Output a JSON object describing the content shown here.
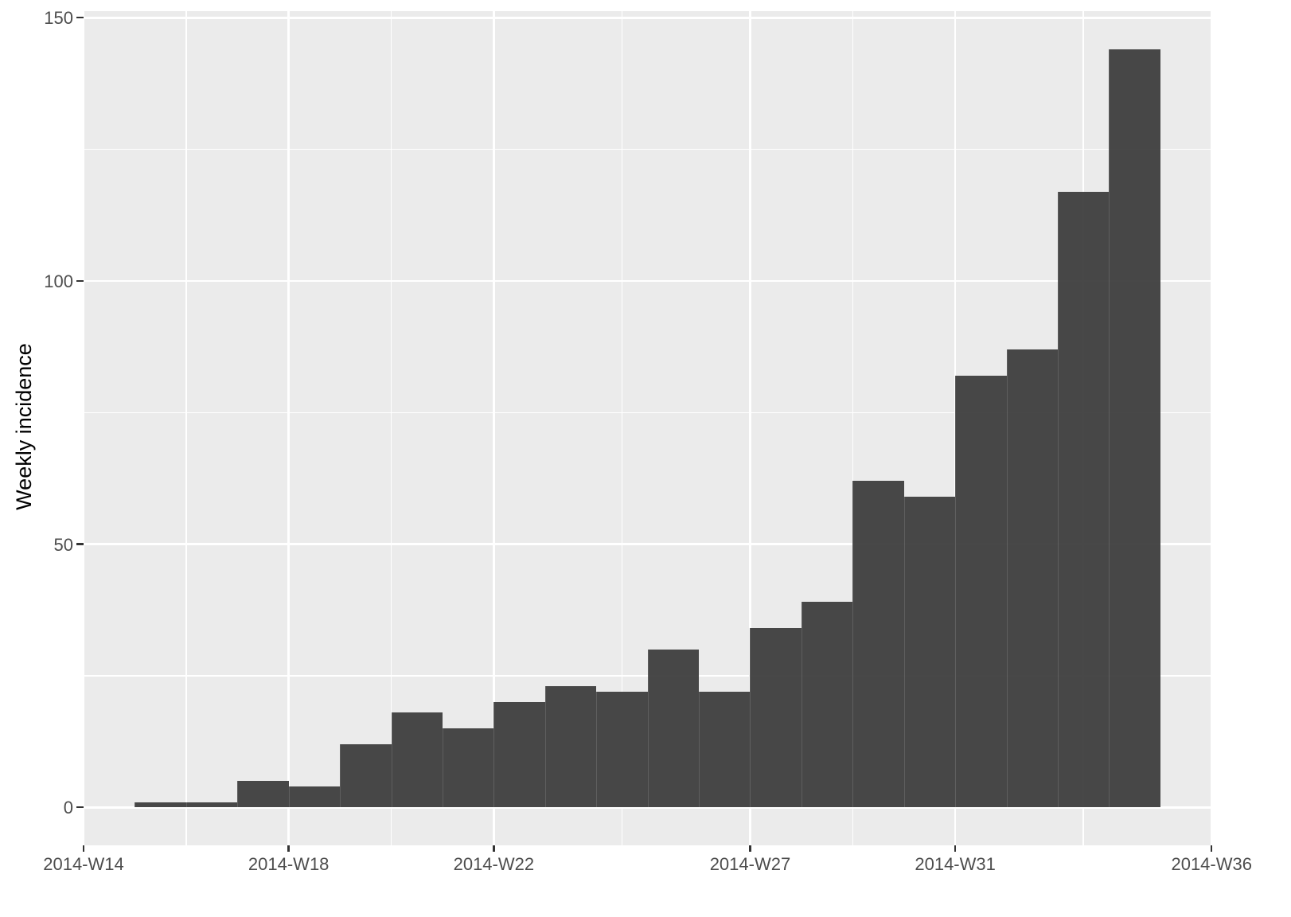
{
  "chart_data": {
    "type": "bar",
    "subtype": "histogram-epicurve",
    "title": "",
    "xlabel": "",
    "ylabel": "Weekly incidence",
    "categories": [
      "2014-W15",
      "2014-W16",
      "2014-W17",
      "2014-W18",
      "2014-W19",
      "2014-W20",
      "2014-W21",
      "2014-W22",
      "2014-W23",
      "2014-W24",
      "2014-W25",
      "2014-W26",
      "2014-W27",
      "2014-W28",
      "2014-W29",
      "2014-W30",
      "2014-W31",
      "2014-W32",
      "2014-W33",
      "2014-W34"
    ],
    "values": [
      1,
      1,
      5,
      4,
      12,
      18,
      15,
      20,
      23,
      22,
      30,
      22,
      34,
      39,
      62,
      59,
      82,
      87,
      117,
      144
    ],
    "ylim": [
      0,
      150
    ],
    "y_major_ticks": [
      0,
      50,
      100,
      150
    ],
    "y_minor_ticks": [
      25,
      75,
      125
    ],
    "x_tick_labels": [
      "2014-W14",
      "2014-W18",
      "2014-W22",
      "2014-W27",
      "2014-W31",
      "2014-W36"
    ],
    "x_tick_week_offsets": [
      0,
      4,
      8,
      13,
      17,
      22
    ],
    "x_minor_week_offsets": [
      2,
      6,
      10.5,
      15,
      19.5
    ],
    "bar_start_week_offset": 1,
    "bar_width_weeks": 1,
    "grid": true,
    "legend_position": "none",
    "colors": {
      "bar_fill": "#464646",
      "panel_background": "#ebebeb",
      "gridline": "#ffffff",
      "axis_text": "#4d4d4d",
      "axis_title": "#000000",
      "tick_mark": "#333333",
      "page_background": "#ffffff"
    }
  }
}
